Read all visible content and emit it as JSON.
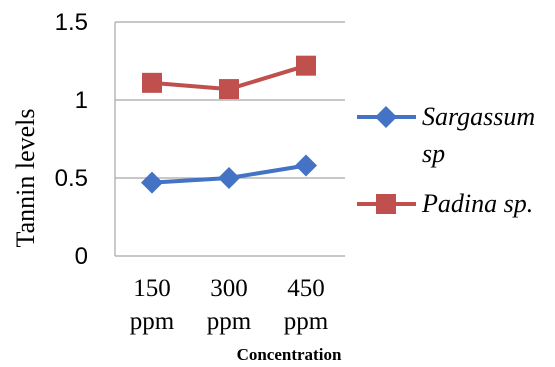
{
  "chart_data": {
    "type": "line",
    "categories": [
      [
        "150",
        "ppm"
      ],
      [
        "300",
        "ppm"
      ],
      [
        "450",
        "ppm"
      ]
    ],
    "series": [
      {
        "name_lines": [
          "Sargassum",
          "sp"
        ],
        "values": [
          0.47,
          0.5,
          0.58
        ],
        "color": "#4472c4",
        "marker": "diamond"
      },
      {
        "name_lines": [
          "Padina sp."
        ],
        "values": [
          1.11,
          1.07,
          1.22
        ],
        "color": "#c0504d",
        "marker": "square"
      }
    ],
    "xlabel": "Concentration",
    "ylabel": "Tannin levels",
    "ylim": [
      0,
      1.5
    ],
    "yticks": [
      "0",
      "0.5",
      "1",
      "1.5"
    ],
    "grid": true,
    "legend_position": "right"
  }
}
